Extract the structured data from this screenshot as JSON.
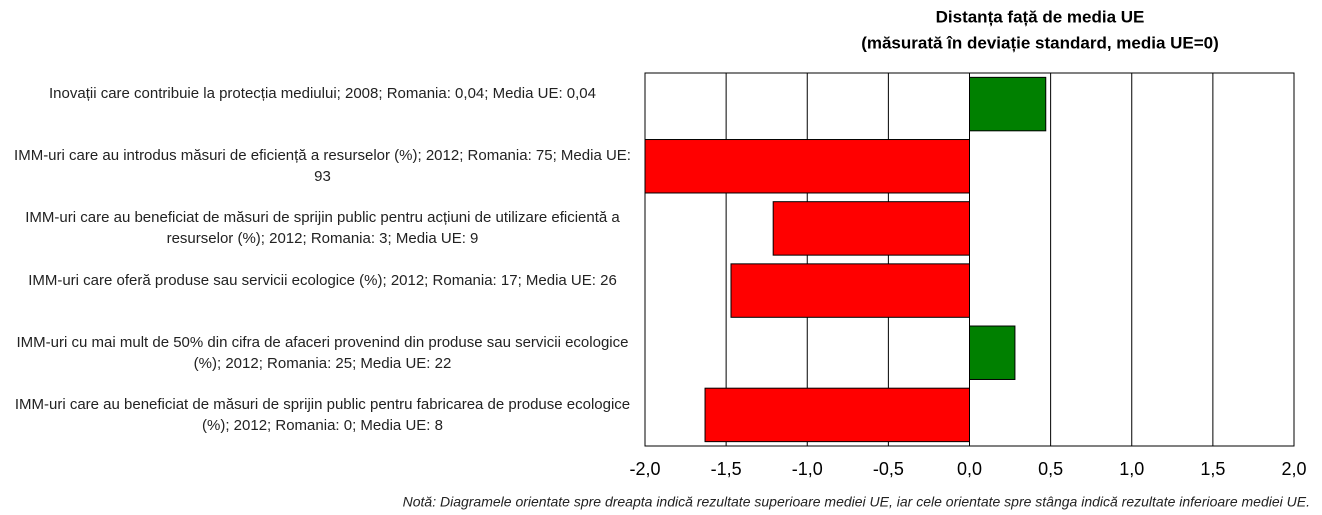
{
  "chart_data": {
    "type": "barh",
    "title": "Distanța față de media UE",
    "subtitle": "(măsurată în deviație standard, media UE=0)",
    "categories": [
      "Inovații care contribuie la protecția mediului; 2008; Romania: 0,04; Media UE: 0,04",
      "IMM-uri care au introdus măsuri de eficiență a resurselor (%); 2012; Romania: 75; Media UE: 93",
      "IMM-uri care au beneficiat de măsuri de sprijin public pentru acțiuni de utilizare eficientă a resurselor (%); 2012; Romania: 3; Media UE: 9",
      "IMM-uri care oferă produse sau servicii ecologice (%); 2012; Romania: 17; Media UE: 26",
      "IMM-uri cu mai mult de 50% din cifra de afaceri provenind din produse sau servicii ecologice (%); 2012; Romania: 25; Media UE: 22",
      "IMM-uri care au beneficiat de măsuri de sprijin public pentru fabricarea de produse ecologice (%); 2012; Romania: 0; Media UE: 8"
    ],
    "values": [
      0.47,
      -2.0,
      -1.21,
      -1.47,
      0.28,
      -1.63
    ],
    "positive_color": "#008000",
    "negative_color": "#ff0000",
    "xlim": [
      -2,
      2
    ],
    "xticks": [
      {
        "value": -2,
        "label": "-2,0"
      },
      {
        "value": -1.5,
        "label": "-1,5"
      },
      {
        "value": -1,
        "label": "-1,0"
      },
      {
        "value": -0.5,
        "label": "-0,5"
      },
      {
        "value": 0,
        "label": "0,0"
      },
      {
        "value": 0.5,
        "label": "0,5"
      },
      {
        "value": 1,
        "label": "1,0"
      },
      {
        "value": 1.5,
        "label": "1,5"
      },
      {
        "value": 2,
        "label": "2,0"
      }
    ],
    "grid": true,
    "note": "Notă: Diagramele orientate spre dreapta indică rezultate superioare mediei UE, iar cele orientate spre stânga indică rezultate inferioare mediei UE."
  }
}
